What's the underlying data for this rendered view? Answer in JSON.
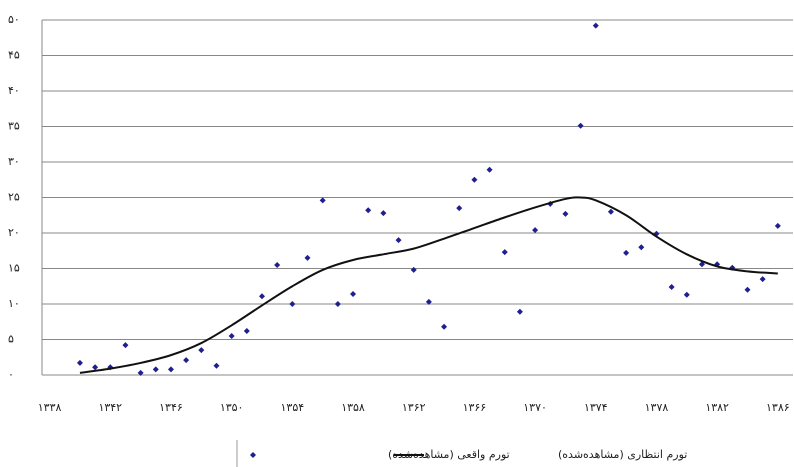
{
  "chart_data": {
    "type": "scatter",
    "xlim": [
      1337.5,
      1387
    ],
    "ylim": [
      0,
      50
    ],
    "xticks": [
      {
        "value": 1338,
        "label": "۱۳۳۸"
      },
      {
        "value": 1342,
        "label": "۱۳۴۲"
      },
      {
        "value": 1346,
        "label": "۱۳۴۶"
      },
      {
        "value": 1350,
        "label": "۱۳۵۰"
      },
      {
        "value": 1354,
        "label": "۱۳۵۴"
      },
      {
        "value": 1358,
        "label": "۱۳۵۸"
      },
      {
        "value": 1362,
        "label": "۱۳۶۲"
      },
      {
        "value": 1366,
        "label": "۱۳۶۶"
      },
      {
        "value": 1370,
        "label": "۱۳۷۰"
      },
      {
        "value": 1374,
        "label": "۱۳۷۴"
      },
      {
        "value": 1378,
        "label": "۱۳۷۸"
      },
      {
        "value": 1382,
        "label": "۱۳۸۲"
      },
      {
        "value": 1386,
        "label": "۱۳۸۶"
      }
    ],
    "yticks": [
      {
        "value": 0,
        "label": "۰"
      },
      {
        "value": 5,
        "label": "۵"
      },
      {
        "value": 10,
        "label": "۱۰"
      },
      {
        "value": 15,
        "label": "۱۵"
      },
      {
        "value": 20,
        "label": "۲۰"
      },
      {
        "value": 25,
        "label": "۲۵"
      },
      {
        "value": 30,
        "label": "۳۰"
      },
      {
        "value": 35,
        "label": "۳۵"
      },
      {
        "value": 40,
        "label": "۴۰"
      },
      {
        "value": 45,
        "label": "۴۵"
      },
      {
        "value": 50,
        "label": "۵۰"
      }
    ],
    "grid": true,
    "series": [
      {
        "name": "تورم واقعی (مشاهده‌شده)",
        "type": "scatter",
        "color": "#1f1f8f",
        "x": [
          1340,
          1341,
          1342,
          1343,
          1344,
          1345,
          1346,
          1347,
          1348,
          1349,
          1350,
          1351,
          1352,
          1353,
          1354,
          1355,
          1356,
          1357,
          1358,
          1359,
          1360,
          1361,
          1362,
          1363,
          1364,
          1365,
          1366,
          1367,
          1368,
          1369,
          1370,
          1371,
          1372,
          1373,
          1374,
          1375,
          1376,
          1377,
          1378,
          1379,
          1380,
          1381,
          1382,
          1383,
          1384,
          1385,
          1386
        ],
        "values": [
          1.7,
          1.1,
          1.1,
          4.2,
          0.3,
          0.8,
          0.8,
          2.1,
          3.5,
          1.3,
          5.5,
          6.2,
          11.1,
          15.5,
          10,
          16.5,
          24.6,
          10,
          11.4,
          23.2,
          22.8,
          19,
          14.8,
          10.3,
          6.8,
          23.5,
          27.5,
          28.9,
          17.3,
          8.9,
          20.4,
          24.1,
          22.7,
          35.1,
          49.2,
          23,
          17.2,
          18,
          19.9,
          12.4,
          11.3,
          15.6,
          15.6,
          15.1,
          12,
          13.5,
          21
        ]
      },
      {
        "name": "تورم انتظاری (مشاهده‌شده)",
        "type": "line",
        "color": "#111111",
        "x": [
          1340,
          1342,
          1344,
          1346,
          1348,
          1350,
          1352,
          1354,
          1356,
          1358,
          1360,
          1362,
          1364,
          1366,
          1368,
          1370,
          1372,
          1373,
          1374,
          1376,
          1378,
          1380,
          1382,
          1384,
          1386
        ],
        "values": [
          0.3,
          0.9,
          1.7,
          2.8,
          4.5,
          7,
          9.8,
          12.5,
          14.8,
          16.2,
          17,
          17.8,
          19.2,
          20.7,
          22.2,
          23.6,
          24.8,
          25,
          24.6,
          22.5,
          19.5,
          17,
          15.3,
          14.6,
          14.3
        ]
      }
    ]
  }
}
